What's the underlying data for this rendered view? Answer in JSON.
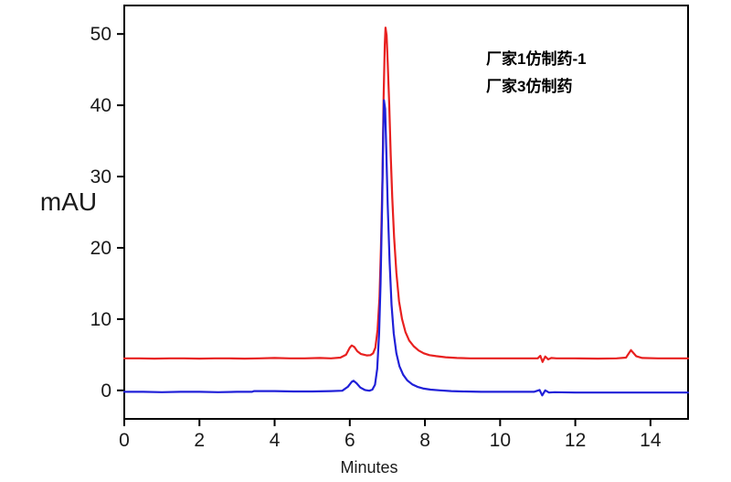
{
  "figure": {
    "background": "#ffffff",
    "frame_color": "#000000",
    "legend": [
      {
        "label": "厂家1仿制药-1",
        "color": "#e8201f"
      },
      {
        "label": "厂家3仿制药",
        "color": "#2020d8"
      }
    ]
  },
  "chart_data": {
    "type": "line",
    "title": "",
    "xlabel": "Minutes",
    "ylabel": "mAU",
    "xlim": [
      0,
      15
    ],
    "ylim": [
      -4,
      54
    ],
    "x_ticks": [
      0,
      2,
      4,
      6,
      8,
      10,
      12,
      14
    ],
    "y_ticks": [
      0,
      10,
      20,
      30,
      40,
      50
    ],
    "grid": false,
    "legend_position": "inside-upper-right",
    "series": [
      {
        "name": "厂家1仿制药-1",
        "color": "#e8201f",
        "baseline_mAU": 4.5,
        "main_peak": {
          "retention_min": 6.95,
          "apex_mAU": 50.9
        },
        "minor_peaks": [
          {
            "retention_min": 6.05,
            "apex_mAU": 6.3
          },
          {
            "retention_min": 13.48,
            "apex_mAU": 5.65
          }
        ],
        "points": [
          [
            0,
            4.5
          ],
          [
            0.4,
            4.5
          ],
          [
            0.8,
            4.45
          ],
          [
            1.2,
            4.5
          ],
          [
            1.6,
            4.5
          ],
          [
            2.0,
            4.45
          ],
          [
            2.4,
            4.5
          ],
          [
            2.8,
            4.5
          ],
          [
            3.2,
            4.45
          ],
          [
            3.6,
            4.5
          ],
          [
            4.0,
            4.55
          ],
          [
            4.4,
            4.5
          ],
          [
            4.8,
            4.5
          ],
          [
            5.2,
            4.55
          ],
          [
            5.5,
            4.5
          ],
          [
            5.75,
            4.6
          ],
          [
            5.9,
            5.0
          ],
          [
            6.0,
            6.0
          ],
          [
            6.05,
            6.3
          ],
          [
            6.12,
            6.1
          ],
          [
            6.2,
            5.5
          ],
          [
            6.3,
            5.1
          ],
          [
            6.45,
            4.9
          ],
          [
            6.55,
            4.95
          ],
          [
            6.62,
            5.2
          ],
          [
            6.68,
            6.0
          ],
          [
            6.74,
            8.5
          ],
          [
            6.79,
            13
          ],
          [
            6.83,
            20
          ],
          [
            6.87,
            30
          ],
          [
            6.9,
            41
          ],
          [
            6.93,
            48.5
          ],
          [
            6.95,
            50.9
          ],
          [
            6.98,
            49.8
          ],
          [
            7.01,
            46
          ],
          [
            7.05,
            40
          ],
          [
            7.09,
            33
          ],
          [
            7.13,
            27
          ],
          [
            7.18,
            21.5
          ],
          [
            7.24,
            16.5
          ],
          [
            7.31,
            12.5
          ],
          [
            7.39,
            10
          ],
          [
            7.48,
            8.2
          ],
          [
            7.58,
            7.0
          ],
          [
            7.7,
            6.2
          ],
          [
            7.83,
            5.6
          ],
          [
            7.97,
            5.2
          ],
          [
            8.12,
            4.95
          ],
          [
            8.3,
            4.8
          ],
          [
            8.55,
            4.65
          ],
          [
            8.85,
            4.55
          ],
          [
            9.2,
            4.5
          ],
          [
            9.7,
            4.5
          ],
          [
            10.2,
            4.5
          ],
          [
            10.7,
            4.5
          ],
          [
            11.0,
            4.5
          ],
          [
            11.07,
            4.85
          ],
          [
            11.13,
            4.0
          ],
          [
            11.2,
            4.75
          ],
          [
            11.28,
            4.35
          ],
          [
            11.36,
            4.55
          ],
          [
            11.5,
            4.5
          ],
          [
            12.0,
            4.5
          ],
          [
            12.6,
            4.45
          ],
          [
            13.1,
            4.5
          ],
          [
            13.35,
            4.6
          ],
          [
            13.48,
            5.65
          ],
          [
            13.62,
            4.8
          ],
          [
            13.78,
            4.55
          ],
          [
            14.2,
            4.5
          ],
          [
            14.6,
            4.5
          ],
          [
            15,
            4.5
          ]
        ]
      },
      {
        "name": "厂家3仿制药",
        "color": "#2020d8",
        "baseline_mAU": -0.2,
        "main_peak": {
          "retention_min": 6.91,
          "apex_mAU": 40.7
        },
        "minor_peaks": [
          {
            "retention_min": 6.1,
            "apex_mAU": 1.35
          }
        ],
        "points": [
          [
            0,
            -0.2
          ],
          [
            0.5,
            -0.2
          ],
          [
            1.0,
            -0.25
          ],
          [
            1.5,
            -0.2
          ],
          [
            2.0,
            -0.2
          ],
          [
            2.5,
            -0.25
          ],
          [
            3.0,
            -0.2
          ],
          [
            3.4,
            -0.2
          ],
          [
            3.45,
            -0.1
          ],
          [
            4.0,
            -0.1
          ],
          [
            4.5,
            -0.15
          ],
          [
            5.0,
            -0.15
          ],
          [
            5.5,
            -0.1
          ],
          [
            5.8,
            -0.05
          ],
          [
            5.95,
            0.5
          ],
          [
            6.05,
            1.2
          ],
          [
            6.1,
            1.35
          ],
          [
            6.18,
            1.0
          ],
          [
            6.28,
            0.4
          ],
          [
            6.4,
            0.05
          ],
          [
            6.52,
            -0.05
          ],
          [
            6.6,
            0.1
          ],
          [
            6.67,
            0.8
          ],
          [
            6.73,
            3.0
          ],
          [
            6.78,
            8
          ],
          [
            6.82,
            15
          ],
          [
            6.86,
            26
          ],
          [
            6.89,
            36
          ],
          [
            6.91,
            40.7
          ],
          [
            6.94,
            39.5
          ],
          [
            6.97,
            34
          ],
          [
            7.01,
            26
          ],
          [
            7.06,
            18
          ],
          [
            7.11,
            12
          ],
          [
            7.17,
            8
          ],
          [
            7.24,
            5.2
          ],
          [
            7.32,
            3.4
          ],
          [
            7.42,
            2.2
          ],
          [
            7.53,
            1.4
          ],
          [
            7.66,
            0.85
          ],
          [
            7.8,
            0.5
          ],
          [
            7.97,
            0.25
          ],
          [
            8.15,
            0.1
          ],
          [
            8.4,
            0
          ],
          [
            8.7,
            -0.1
          ],
          [
            9.0,
            -0.15
          ],
          [
            9.5,
            -0.2
          ],
          [
            10.2,
            -0.2
          ],
          [
            10.9,
            -0.2
          ],
          [
            11.05,
            0.05
          ],
          [
            11.12,
            -0.7
          ],
          [
            11.2,
            0.0
          ],
          [
            11.3,
            -0.3
          ],
          [
            11.45,
            -0.25
          ],
          [
            12.0,
            -0.3
          ],
          [
            12.8,
            -0.3
          ],
          [
            13.6,
            -0.3
          ],
          [
            14.3,
            -0.3
          ],
          [
            15,
            -0.3
          ]
        ]
      }
    ]
  }
}
